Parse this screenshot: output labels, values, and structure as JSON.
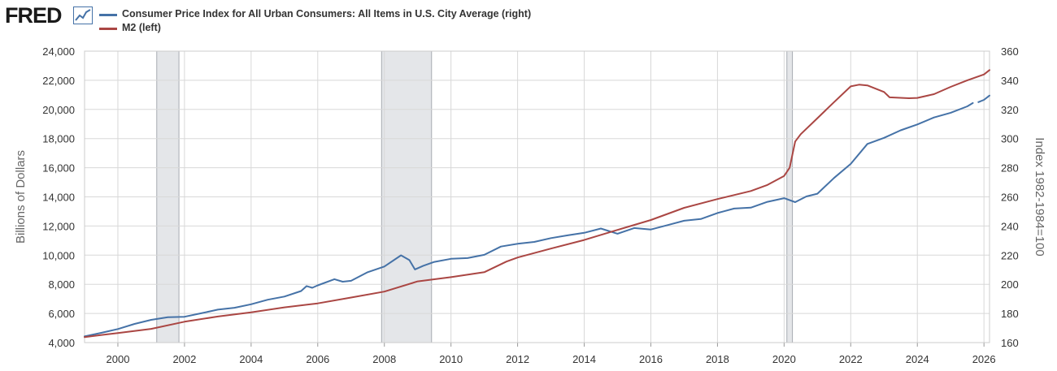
{
  "header": {
    "logo_text": "FRED",
    "logo_icon": "chart-line-icon"
  },
  "chart_data": {
    "type": "line",
    "x_axis": {
      "type": "date",
      "range": [
        "1999-01-01",
        "2026-03-01"
      ],
      "ticks": [
        "2000",
        "2002",
        "2004",
        "2006",
        "2008",
        "2010",
        "2012",
        "2014",
        "2016",
        "2018",
        "2020",
        "2022",
        "2024",
        "2026"
      ]
    },
    "y_left": {
      "label": "Billions of Dollars",
      "range": [
        4000,
        24000
      ],
      "ticks": [
        "4,000",
        "6,000",
        "8,000",
        "10,000",
        "12,000",
        "14,000",
        "16,000",
        "18,000",
        "20,000",
        "22,000",
        "24,000"
      ]
    },
    "y_right": {
      "label": "Index 1982-1984=100",
      "range": [
        160,
        360
      ],
      "ticks": [
        "160",
        "180",
        "200",
        "220",
        "240",
        "260",
        "280",
        "300",
        "320",
        "340",
        "360"
      ]
    },
    "grid": true,
    "legend_placement": "top-left",
    "recessions": [
      {
        "start": "2001-03-01",
        "end": "2001-11-01"
      },
      {
        "start": "2007-12-01",
        "end": "2009-06-01"
      },
      {
        "start": "2020-02-01",
        "end": "2020-04-01"
      }
    ],
    "series": [
      {
        "name": "Consumer Price Index for All Urban Consumers: All Items in U.S. City Average (right)",
        "axis": "right",
        "color": "#4572a7",
        "points": [
          [
            "1999-01-01",
            164.3
          ],
          [
            "1999-07-01",
            166.7
          ],
          [
            "2000-01-01",
            169.3
          ],
          [
            "2000-07-01",
            172.8
          ],
          [
            "2001-01-01",
            175.6
          ],
          [
            "2001-07-01",
            177.4
          ],
          [
            "2002-01-01",
            177.7
          ],
          [
            "2002-07-01",
            180.1
          ],
          [
            "2003-01-01",
            182.6
          ],
          [
            "2003-07-01",
            183.9
          ],
          [
            "2004-01-01",
            186.3
          ],
          [
            "2004-07-01",
            189.4
          ],
          [
            "2005-01-01",
            191.6
          ],
          [
            "2005-07-01",
            195.4
          ],
          [
            "2005-09-01",
            198.8
          ],
          [
            "2005-11-01",
            197.6
          ],
          [
            "2006-01-01",
            199.3
          ],
          [
            "2006-07-01",
            203.5
          ],
          [
            "2006-10-01",
            201.8
          ],
          [
            "2007-01-01",
            202.4
          ],
          [
            "2007-07-01",
            208.3
          ],
          [
            "2008-01-01",
            212.2
          ],
          [
            "2008-07-01",
            219.9
          ],
          [
            "2008-10-01",
            216.6
          ],
          [
            "2008-12-01",
            210.2
          ],
          [
            "2009-03-01",
            212.7
          ],
          [
            "2009-07-01",
            215.4
          ],
          [
            "2010-01-01",
            217.5
          ],
          [
            "2010-07-01",
            218.0
          ],
          [
            "2011-01-01",
            220.2
          ],
          [
            "2011-07-01",
            225.9
          ],
          [
            "2012-01-01",
            227.8
          ],
          [
            "2012-07-01",
            229.1
          ],
          [
            "2013-01-01",
            231.7
          ],
          [
            "2013-07-01",
            233.6
          ],
          [
            "2014-01-01",
            235.3
          ],
          [
            "2014-07-01",
            238.3
          ],
          [
            "2015-01-01",
            234.7
          ],
          [
            "2015-07-01",
            238.6
          ],
          [
            "2016-01-01",
            237.6
          ],
          [
            "2016-07-01",
            240.6
          ],
          [
            "2017-01-01",
            243.6
          ],
          [
            "2017-07-01",
            244.8
          ],
          [
            "2018-01-01",
            248.9
          ],
          [
            "2018-07-01",
            252.0
          ],
          [
            "2019-01-01",
            252.6
          ],
          [
            "2019-07-01",
            256.6
          ],
          [
            "2020-01-01",
            259.1
          ],
          [
            "2020-05-01",
            256.4
          ],
          [
            "2020-09-01",
            260.3
          ],
          [
            "2021-01-01",
            262.2
          ],
          [
            "2021-07-01",
            273.0
          ],
          [
            "2022-01-01",
            282.6
          ],
          [
            "2022-07-01",
            296.3
          ],
          [
            "2023-01-01",
            300.5
          ],
          [
            "2023-07-01",
            305.7
          ],
          [
            "2024-01-01",
            309.7
          ],
          [
            "2024-07-01",
            314.5
          ],
          [
            "2025-01-01",
            317.7
          ],
          [
            "2025-07-01",
            322.1
          ],
          [
            "2025-09-01",
            324.4
          ],
          null,
          [
            "2025-11-01",
            325.0
          ],
          [
            "2026-01-01",
            326.6
          ],
          [
            "2026-03-01",
            329.5
          ]
        ]
      },
      {
        "name": "M2 (left)",
        "axis": "left",
        "color": "#aa4643",
        "points": [
          [
            "1999-01-01",
            4380
          ],
          [
            "2000-01-01",
            4660
          ],
          [
            "2001-01-01",
            4940
          ],
          [
            "2002-01-01",
            5430
          ],
          [
            "2003-01-01",
            5790
          ],
          [
            "2004-01-01",
            6070
          ],
          [
            "2005-01-01",
            6420
          ],
          [
            "2006-01-01",
            6690
          ],
          [
            "2007-01-01",
            7090
          ],
          [
            "2008-01-01",
            7500
          ],
          [
            "2009-01-01",
            8200
          ],
          [
            "2010-01-01",
            8490
          ],
          [
            "2011-01-01",
            8830
          ],
          [
            "2011-09-01",
            9560
          ],
          [
            "2012-01-01",
            9840
          ],
          [
            "2013-01-01",
            10450
          ],
          [
            "2014-01-01",
            11040
          ],
          [
            "2015-01-01",
            11730
          ],
          [
            "2016-01-01",
            12410
          ],
          [
            "2017-01-01",
            13250
          ],
          [
            "2018-01-01",
            13850
          ],
          [
            "2019-01-01",
            14400
          ],
          [
            "2019-07-01",
            14820
          ],
          [
            "2020-01-01",
            15440
          ],
          [
            "2020-03-01",
            16000
          ],
          [
            "2020-05-01",
            17800
          ],
          [
            "2020-07-01",
            18300
          ],
          [
            "2021-01-01",
            19400
          ],
          [
            "2021-07-01",
            20500
          ],
          [
            "2022-01-01",
            21580
          ],
          [
            "2022-04-01",
            21700
          ],
          [
            "2022-07-01",
            21650
          ],
          [
            "2023-01-01",
            21200
          ],
          [
            "2023-03-01",
            20830
          ],
          [
            "2023-10-01",
            20770
          ],
          [
            "2024-01-01",
            20790
          ],
          [
            "2024-07-01",
            21050
          ],
          [
            "2025-01-01",
            21550
          ],
          [
            "2025-07-01",
            22000
          ],
          [
            "2026-01-01",
            22400
          ],
          [
            "2026-03-01",
            22700
          ]
        ]
      }
    ]
  }
}
